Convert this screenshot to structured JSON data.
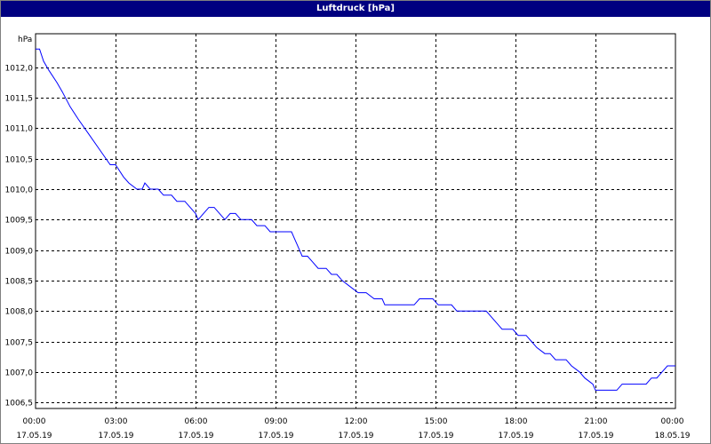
{
  "window": {
    "title": "Luftdruck [hPa]"
  },
  "chart_data": {
    "type": "line",
    "title": "Luftdruck [hPa]",
    "ylabel": "hPa",
    "ylim": [
      1006.4,
      1012.55
    ],
    "y_ticks": [
      "1012,0",
      "1011,5",
      "1011,0",
      "1010,5",
      "1010,0",
      "1009,5",
      "1009,0",
      "1008,5",
      "1008,0",
      "1007,5",
      "1007,0",
      "1006,5"
    ],
    "y_tick_values": [
      1012.0,
      1011.5,
      1011.0,
      1010.5,
      1010.0,
      1009.5,
      1009.0,
      1008.5,
      1008.0,
      1007.5,
      1007.0,
      1006.5
    ],
    "x_ticks": [
      {
        "time": "00:00",
        "date": "17.05.19"
      },
      {
        "time": "03:00",
        "date": "17.05.19"
      },
      {
        "time": "06:00",
        "date": "17.05.19"
      },
      {
        "time": "09:00",
        "date": "17.05.19"
      },
      {
        "time": "12:00",
        "date": "17.05.19"
      },
      {
        "time": "15:00",
        "date": "17.05.19"
      },
      {
        "time": "18:00",
        "date": "17.05.19"
      },
      {
        "time": "21:00",
        "date": "17.05.19"
      },
      {
        "time": "00:00",
        "date": "18.05.19"
      }
    ],
    "xlim_hours": [
      0,
      24
    ],
    "grid": true,
    "series": [
      {
        "color": "#0000ff",
        "points": [
          [
            0.0,
            1012.3
          ],
          [
            0.15,
            1012.3
          ],
          [
            0.3,
            1012.1
          ],
          [
            0.5,
            1011.95
          ],
          [
            0.8,
            1011.75
          ],
          [
            1.0,
            1011.6
          ],
          [
            1.3,
            1011.35
          ],
          [
            1.6,
            1011.15
          ],
          [
            2.0,
            1010.9
          ],
          [
            2.4,
            1010.65
          ],
          [
            2.8,
            1010.4
          ],
          [
            3.0,
            1010.4
          ],
          [
            3.3,
            1010.2
          ],
          [
            3.5,
            1010.1
          ],
          [
            3.8,
            1010.0
          ],
          [
            4.0,
            1010.0
          ],
          [
            4.1,
            1010.1
          ],
          [
            4.3,
            1010.0
          ],
          [
            4.6,
            1010.0
          ],
          [
            4.8,
            1009.9
          ],
          [
            5.1,
            1009.9
          ],
          [
            5.3,
            1009.8
          ],
          [
            5.6,
            1009.8
          ],
          [
            5.8,
            1009.7
          ],
          [
            6.0,
            1009.6
          ],
          [
            6.1,
            1009.5
          ],
          [
            6.3,
            1009.6
          ],
          [
            6.5,
            1009.7
          ],
          [
            6.7,
            1009.7
          ],
          [
            6.9,
            1009.6
          ],
          [
            7.1,
            1009.5
          ],
          [
            7.3,
            1009.6
          ],
          [
            7.5,
            1009.6
          ],
          [
            7.7,
            1009.5
          ],
          [
            8.1,
            1009.5
          ],
          [
            8.3,
            1009.4
          ],
          [
            8.6,
            1009.4
          ],
          [
            8.8,
            1009.3
          ],
          [
            9.6,
            1009.3
          ],
          [
            9.7,
            1009.2
          ],
          [
            9.8,
            1009.1
          ],
          [
            9.9,
            1009.0
          ],
          [
            10.0,
            1008.9
          ],
          [
            10.2,
            1008.9
          ],
          [
            10.4,
            1008.8
          ],
          [
            10.6,
            1008.7
          ],
          [
            10.9,
            1008.7
          ],
          [
            11.1,
            1008.6
          ],
          [
            11.3,
            1008.6
          ],
          [
            11.5,
            1008.5
          ],
          [
            11.8,
            1008.4
          ],
          [
            12.1,
            1008.3
          ],
          [
            12.4,
            1008.3
          ],
          [
            12.7,
            1008.2
          ],
          [
            13.0,
            1008.2
          ],
          [
            13.1,
            1008.1
          ],
          [
            14.2,
            1008.1
          ],
          [
            14.4,
            1008.2
          ],
          [
            14.9,
            1008.2
          ],
          [
            15.1,
            1008.1
          ],
          [
            15.6,
            1008.1
          ],
          [
            15.8,
            1008.0
          ],
          [
            16.9,
            1008.0
          ],
          [
            17.1,
            1007.9
          ],
          [
            17.3,
            1007.8
          ],
          [
            17.5,
            1007.7
          ],
          [
            17.9,
            1007.7
          ],
          [
            18.1,
            1007.6
          ],
          [
            18.4,
            1007.6
          ],
          [
            18.6,
            1007.5
          ],
          [
            18.8,
            1007.4
          ],
          [
            19.1,
            1007.3
          ],
          [
            19.3,
            1007.3
          ],
          [
            19.5,
            1007.2
          ],
          [
            19.9,
            1007.2
          ],
          [
            20.1,
            1007.1
          ],
          [
            20.4,
            1007.0
          ],
          [
            20.6,
            1006.9
          ],
          [
            20.9,
            1006.8
          ],
          [
            21.0,
            1006.7
          ],
          [
            21.8,
            1006.7
          ],
          [
            22.0,
            1006.8
          ],
          [
            22.9,
            1006.8
          ],
          [
            23.1,
            1006.9
          ],
          [
            23.3,
            1006.9
          ],
          [
            23.5,
            1007.0
          ],
          [
            23.7,
            1007.1
          ],
          [
            24.0,
            1007.1
          ]
        ]
      }
    ]
  }
}
